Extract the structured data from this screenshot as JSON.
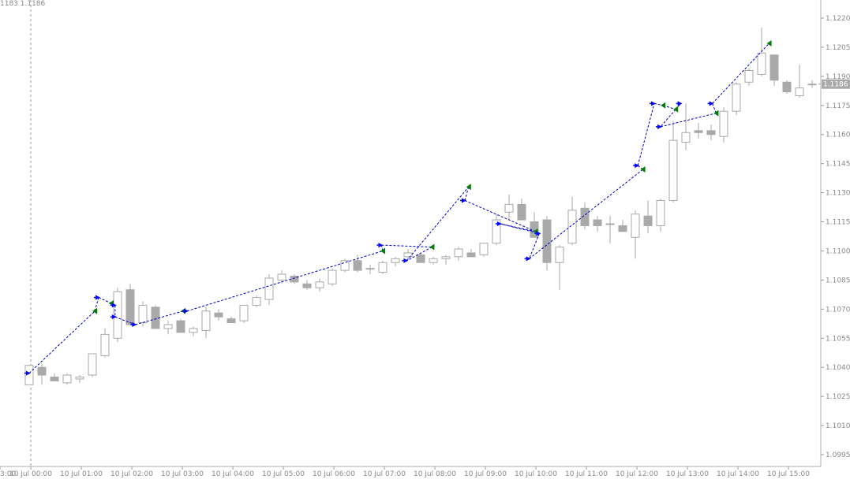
{
  "header": {
    "ohlc_text": "1183 1.1186"
  },
  "price_axis": {
    "ticks": [
      "1.1220",
      "1.1205",
      "1.1190",
      "1.1175",
      "1.1160",
      "1.1145",
      "1.1130",
      "1.1115",
      "1.1100",
      "1.1085",
      "1.1070",
      "1.1055",
      "1.1040",
      "1.1025",
      "1.1010",
      "1.0995"
    ],
    "current_price_label": "1.1186"
  },
  "time_axis": {
    "labels": [
      "3:00",
      "10 Jul 00:00",
      "10 Jul 01:00",
      "10 Jul 02:00",
      "10 Jul 03:00",
      "10 Jul 04:00",
      "10 Jul 05:00",
      "10 Jul 06:00",
      "10 Jul 07:00",
      "10 Jul 08:00",
      "10 Jul 09:00",
      "10 Jul 10:00",
      "10 Jul 11:00",
      "10 Jul 12:00",
      "10 Jul 13:00",
      "10 Jul 14:00",
      "10 Jul 15:00"
    ]
  },
  "colors": {
    "bull_fill": "#ffffff",
    "bear_fill": "#a9a9a9",
    "candle_outline": "#a9a9a9",
    "trade_line": "#0000cc",
    "entry_arrow": "#0000ff",
    "exit_arrow": "#008000",
    "grid_text": "#8a8a8a",
    "price_label_bg": "#a9a9a9",
    "price_label_text": "#ffffff"
  },
  "chart_data": {
    "type": "candlestick",
    "title": "",
    "timeframe_minutes": 15,
    "ylim": [
      1.0992,
      1.1227
    ],
    "candles": [
      {
        "o": 1.1031,
        "h": 1.1041,
        "l": 1.1031,
        "c": 1.1041
      },
      {
        "o": 1.104,
        "h": 1.1042,
        "l": 1.1031,
        "c": 1.1036
      },
      {
        "o": 1.1035,
        "h": 1.1037,
        "l": 1.1033,
        "c": 1.1033
      },
      {
        "o": 1.1032,
        "h": 1.1037,
        "l": 1.1031,
        "c": 1.1036
      },
      {
        "o": 1.1034,
        "h": 1.1036,
        "l": 1.1032,
        "c": 1.1035
      },
      {
        "o": 1.1036,
        "h": 1.1047,
        "l": 1.1035,
        "c": 1.1047
      },
      {
        "o": 1.1046,
        "h": 1.106,
        "l": 1.1045,
        "c": 1.1057
      },
      {
        "o": 1.1055,
        "h": 1.1081,
        "l": 1.1053,
        "c": 1.1079
      },
      {
        "o": 1.108,
        "h": 1.1083,
        "l": 1.1062,
        "c": 1.1062
      },
      {
        "o": 1.1063,
        "h": 1.1074,
        "l": 1.1061,
        "c": 1.1072
      },
      {
        "o": 1.1071,
        "h": 1.1072,
        "l": 1.106,
        "c": 1.106
      },
      {
        "o": 1.106,
        "h": 1.1064,
        "l": 1.1057,
        "c": 1.1062
      },
      {
        "o": 1.1064,
        "h": 1.1065,
        "l": 1.1058,
        "c": 1.1058
      },
      {
        "o": 1.1058,
        "h": 1.1061,
        "l": 1.1056,
        "c": 1.106
      },
      {
        "o": 1.1059,
        "h": 1.1071,
        "l": 1.1055,
        "c": 1.1069
      },
      {
        "o": 1.1068,
        "h": 1.107,
        "l": 1.1064,
        "c": 1.1066
      },
      {
        "o": 1.1065,
        "h": 1.1066,
        "l": 1.1063,
        "c": 1.1063
      },
      {
        "o": 1.1064,
        "h": 1.1072,
        "l": 1.1063,
        "c": 1.1072
      },
      {
        "o": 1.1072,
        "h": 1.1077,
        "l": 1.1071,
        "c": 1.1076
      },
      {
        "o": 1.1075,
        "h": 1.1088,
        "l": 1.1072,
        "c": 1.1086
      },
      {
        "o": 1.1085,
        "h": 1.109,
        "l": 1.1083,
        "c": 1.1088
      },
      {
        "o": 1.1087,
        "h": 1.1088,
        "l": 1.1083,
        "c": 1.1084
      },
      {
        "o": 1.1083,
        "h": 1.1085,
        "l": 1.108,
        "c": 1.1081
      },
      {
        "o": 1.1081,
        "h": 1.1086,
        "l": 1.1079,
        "c": 1.1084
      },
      {
        "o": 1.1083,
        "h": 1.1091,
        "l": 1.1082,
        "c": 1.109
      },
      {
        "o": 1.109,
        "h": 1.1096,
        "l": 1.1089,
        "c": 1.1095
      },
      {
        "o": 1.1095,
        "h": 1.1098,
        "l": 1.1089,
        "c": 1.109
      },
      {
        "o": 1.1091,
        "h": 1.1093,
        "l": 1.1088,
        "c": 1.1091
      },
      {
        "o": 1.1089,
        "h": 1.1095,
        "l": 1.1088,
        "c": 1.1094
      },
      {
        "o": 1.1094,
        "h": 1.1097,
        "l": 1.1092,
        "c": 1.1096
      },
      {
        "o": 1.1097,
        "h": 1.1101,
        "l": 1.1096,
        "c": 1.1099
      },
      {
        "o": 1.1098,
        "h": 1.1099,
        "l": 1.1094,
        "c": 1.1094
      },
      {
        "o": 1.1094,
        "h": 1.1097,
        "l": 1.1093,
        "c": 1.1096
      },
      {
        "o": 1.1096,
        "h": 1.1098,
        "l": 1.1093,
        "c": 1.1097
      },
      {
        "o": 1.1097,
        "h": 1.1102,
        "l": 1.1095,
        "c": 1.1101
      },
      {
        "o": 1.1099,
        "h": 1.1101,
        "l": 1.1097,
        "c": 1.1097
      },
      {
        "o": 1.1098,
        "h": 1.1104,
        "l": 1.1097,
        "c": 1.1104
      },
      {
        "o": 1.1104,
        "h": 1.1119,
        "l": 1.1103,
        "c": 1.1116
      },
      {
        "o": 1.112,
        "h": 1.1129,
        "l": 1.1116,
        "c": 1.1124
      },
      {
        "o": 1.1124,
        "h": 1.1127,
        "l": 1.1116,
        "c": 1.1116
      },
      {
        "o": 1.1115,
        "h": 1.112,
        "l": 1.1107,
        "c": 1.1107
      },
      {
        "o": 1.1116,
        "h": 1.1118,
        "l": 1.109,
        "c": 1.1094
      },
      {
        "o": 1.1094,
        "h": 1.1103,
        "l": 1.108,
        "c": 1.1102
      },
      {
        "o": 1.1104,
        "h": 1.1128,
        "l": 1.1103,
        "c": 1.1121
      },
      {
        "o": 1.1122,
        "h": 1.1125,
        "l": 1.1111,
        "c": 1.1113
      },
      {
        "o": 1.1116,
        "h": 1.1118,
        "l": 1.111,
        "c": 1.1113
      },
      {
        "o": 1.1114,
        "h": 1.1118,
        "l": 1.1104,
        "c": 1.1114
      },
      {
        "o": 1.1113,
        "h": 1.1116,
        "l": 1.111,
        "c": 1.111
      },
      {
        "o": 1.1107,
        "h": 1.1121,
        "l": 1.1096,
        "c": 1.1119
      },
      {
        "o": 1.1118,
        "h": 1.1126,
        "l": 1.1109,
        "c": 1.1113
      },
      {
        "o": 1.1113,
        "h": 1.1127,
        "l": 1.111,
        "c": 1.1126
      },
      {
        "o": 1.1126,
        "h": 1.1167,
        "l": 1.1125,
        "c": 1.1157
      },
      {
        "o": 1.1156,
        "h": 1.1176,
        "l": 1.1152,
        "c": 1.1161
      },
      {
        "o": 1.1162,
        "h": 1.1166,
        "l": 1.1158,
        "c": 1.1161
      },
      {
        "o": 1.1162,
        "h": 1.1165,
        "l": 1.1157,
        "c": 1.116
      },
      {
        "o": 1.1159,
        "h": 1.1174,
        "l": 1.1156,
        "c": 1.1172
      },
      {
        "o": 1.1172,
        "h": 1.1187,
        "l": 1.117,
        "c": 1.1186
      },
      {
        "o": 1.1187,
        "h": 1.1194,
        "l": 1.1185,
        "c": 1.1193
      },
      {
        "o": 1.1191,
        "h": 1.1215,
        "l": 1.119,
        "c": 1.1202
      },
      {
        "o": 1.1201,
        "h": 1.1201,
        "l": 1.1185,
        "c": 1.1188
      },
      {
        "o": 1.1187,
        "h": 1.1188,
        "l": 1.1181,
        "c": 1.1182
      },
      {
        "o": 1.118,
        "h": 1.1196,
        "l": 1.1179,
        "c": 1.1184
      },
      {
        "o": 1.1186,
        "h": 1.1188,
        "l": 1.1184,
        "c": 1.1186
      }
    ],
    "trade_path": [
      {
        "i": 0.0,
        "p": 1.1037,
        "kind": "entry"
      },
      {
        "i": 5.2,
        "p": 1.1069,
        "kind": "exit"
      },
      {
        "i": 5.5,
        "p": 1.1076,
        "kind": "entry"
      },
      {
        "i": 6.5,
        "p": 1.1073,
        "kind": "exit"
      },
      {
        "i": 6.8,
        "p": 1.1072,
        "kind": "entry"
      },
      {
        "i": 6.8,
        "p": 1.1066,
        "kind": "entry"
      },
      {
        "i": 8.4,
        "p": 1.1062,
        "kind": "entry"
      },
      {
        "i": 12.2,
        "p": 1.1069,
        "kind": "exit"
      },
      {
        "i": 12.5,
        "p": 1.1069,
        "kind": "entry"
      },
      {
        "i": 28.0,
        "p": 1.11,
        "kind": "exit"
      },
      {
        "i": 27.9,
        "p": 1.1103,
        "kind": "entry"
      },
      {
        "i": 31.9,
        "p": 1.1102,
        "kind": "exit"
      },
      {
        "i": 29.9,
        "p": 1.1095,
        "kind": "entry"
      },
      {
        "i": 34.8,
        "p": 1.1133,
        "kind": "exit"
      },
      {
        "i": 34.5,
        "p": 1.1126,
        "kind": "entry"
      },
      {
        "i": 40.1,
        "p": 1.111,
        "kind": "exit"
      },
      {
        "i": 37.3,
        "p": 1.1114,
        "kind": "entry"
      },
      {
        "i": 40.4,
        "p": 1.1109,
        "kind": "entry"
      },
      {
        "i": 39.6,
        "p": 1.1096,
        "kind": "entry"
      },
      {
        "i": 48.6,
        "p": 1.1142,
        "kind": "exit"
      },
      {
        "i": 48.2,
        "p": 1.1144,
        "kind": "entry"
      },
      {
        "i": 49.5,
        "p": 1.1176,
        "kind": "entry"
      },
      {
        "i": 50.2,
        "p": 1.1175,
        "kind": "exit"
      },
      {
        "i": 51.2,
        "p": 1.1173,
        "kind": "exit"
      },
      {
        "i": 51.6,
        "p": 1.1176,
        "kind": "entry"
      },
      {
        "i": 50.0,
        "p": 1.1164,
        "kind": "entry"
      },
      {
        "i": 54.4,
        "p": 1.1171,
        "kind": "exit"
      },
      {
        "i": 54.1,
        "p": 1.1176,
        "kind": "entry"
      },
      {
        "i": 58.6,
        "p": 1.1207,
        "kind": "exit"
      }
    ]
  }
}
